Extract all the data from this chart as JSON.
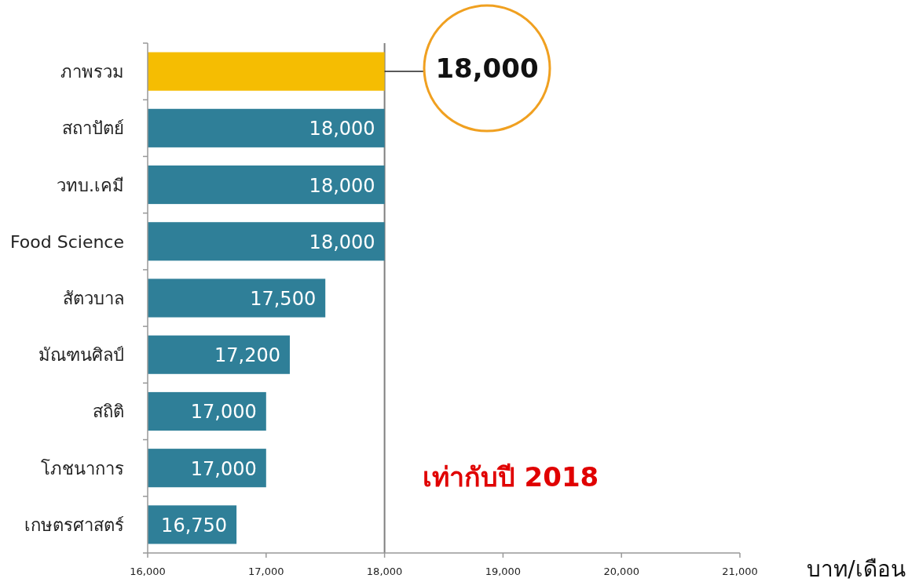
{
  "chart_data": {
    "type": "bar",
    "orientation": "horizontal",
    "xlabel": "บาท/เดือน",
    "categories": [
      "ภาพรวม",
      "สถาปัตย์",
      "วทบ.เคมี",
      "Food Science",
      "สัตวบาล",
      "มัณฑนศิลป์",
      "สถิติ",
      "โภชนาการ",
      "เกษตรศาสตร์"
    ],
    "values": [
      18000,
      18000,
      18000,
      18000,
      17500,
      17200,
      17000,
      17000,
      16750
    ],
    "colors": [
      "#f5bd02",
      "#2f7f98",
      "#2f7f98",
      "#2f7f98",
      "#2f7f98",
      "#2f7f98",
      "#2f7f98",
      "#2f7f98",
      "#2f7f98"
    ],
    "value_labels": [
      "18,000",
      "18,000",
      "18,000",
      "18,000",
      "17,500",
      "17,200",
      "17,000",
      "17,000",
      "16,750"
    ],
    "xlim": [
      16000,
      21000
    ],
    "xticks": [
      {
        "value": 16000,
        "label": "16,000"
      },
      {
        "value": 17000,
        "label": "17,000"
      },
      {
        "value": 18000,
        "label": "18,000"
      },
      {
        "value": 19000,
        "label": "19,000"
      },
      {
        "value": 20000,
        "label": "20,000"
      },
      {
        "value": 21000,
        "label": "21,000"
      }
    ],
    "ref_lines": [
      {
        "axis": "x",
        "value": 18000,
        "color": "#7f7f7f"
      }
    ],
    "annotations": [
      "เท่ากับปี 2018"
    ]
  }
}
